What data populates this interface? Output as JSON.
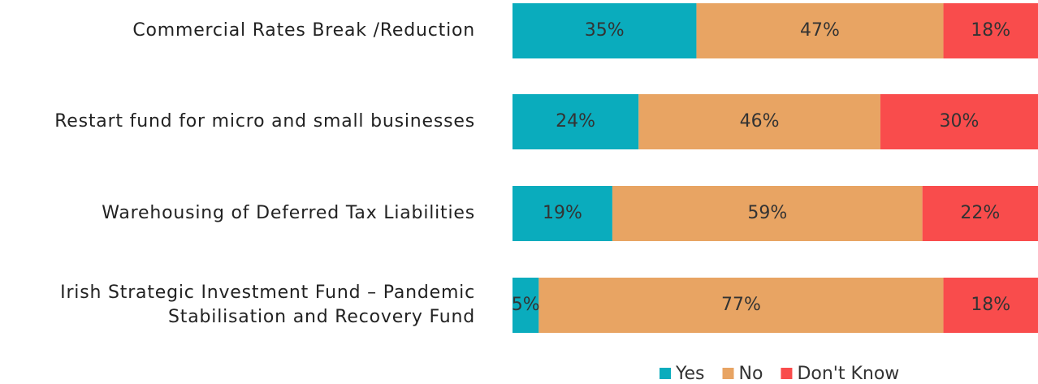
{
  "chart_data": {
    "type": "stacked_barh",
    "categories": [
      "Commercial Rates Break /Reduction",
      "Restart fund for micro and small businesses",
      "Warehousing of Deferred Tax Liabilities",
      "Irish Strategic Investment Fund – Pandemic Stabilisation and Recovery Fund"
    ],
    "xlim": [
      0,
      100
    ],
    "series": [
      {
        "name": "Yes",
        "color": "#0aacbd",
        "values": [
          35,
          24,
          19,
          5
        ],
        "value_labels": [
          "35%",
          "24%",
          "19%",
          "5%"
        ]
      },
      {
        "name": "No",
        "color": "#e8a463",
        "values": [
          47,
          46,
          59,
          77
        ],
        "value_labels": [
          "47%",
          "46%",
          "59%",
          "77%"
        ]
      },
      {
        "name": "Don't Know",
        "color": "#f94c4c",
        "values": [
          18,
          30,
          22,
          18
        ],
        "value_labels": [
          "18%",
          "30%",
          "22%",
          "18%"
        ]
      }
    ],
    "legend": "bottom"
  }
}
